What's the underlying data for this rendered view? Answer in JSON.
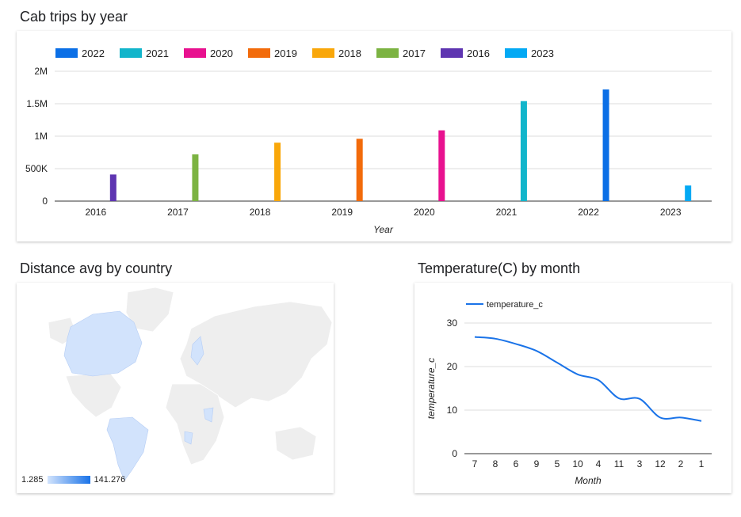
{
  "bar_section": {
    "title": "Cab trips by year"
  },
  "map_section": {
    "title": "Distance avg by country",
    "legend_min": "1.285",
    "legend_max": "141.276",
    "colors": {
      "low": "#d2e3fc",
      "high": "#1a73e8",
      "no_data": "#eeeeee"
    }
  },
  "line_section": {
    "title": "Temperature(C) by month"
  },
  "chart_data": [
    {
      "type": "bar",
      "title": "Cab trips by year",
      "xlabel": "Year",
      "ylabel": "",
      "ylim": [
        0,
        2000000
      ],
      "yticks": [
        {
          "value": 0,
          "label": "0"
        },
        {
          "value": 500000,
          "label": "500K"
        },
        {
          "value": 1000000,
          "label": "1M"
        },
        {
          "value": 1500000,
          "label": "1.5M"
        },
        {
          "value": 2000000,
          "label": "2M"
        }
      ],
      "categories": [
        "2016",
        "2017",
        "2018",
        "2019",
        "2020",
        "2021",
        "2022",
        "2023"
      ],
      "legend_position": "top-left",
      "series": [
        {
          "name": "2022",
          "color": "#0b6fe6",
          "values": [
            null,
            null,
            null,
            null,
            null,
            null,
            1720000,
            null
          ]
        },
        {
          "name": "2021",
          "color": "#12b5cb",
          "values": [
            null,
            null,
            null,
            null,
            null,
            1540000,
            null,
            null
          ]
        },
        {
          "name": "2020",
          "color": "#e8118f",
          "values": [
            null,
            null,
            null,
            null,
            1090000,
            null,
            null,
            null
          ]
        },
        {
          "name": "2019",
          "color": "#f26b0b",
          "values": [
            null,
            null,
            null,
            960000,
            null,
            null,
            null,
            null
          ]
        },
        {
          "name": "2018",
          "color": "#f9a70a",
          "values": [
            null,
            null,
            900000,
            null,
            null,
            null,
            null,
            null
          ]
        },
        {
          "name": "2017",
          "color": "#7cb342",
          "values": [
            null,
            720000,
            null,
            null,
            null,
            null,
            null,
            null
          ]
        },
        {
          "name": "2016",
          "color": "#5e35b1",
          "values": [
            410000,
            null,
            null,
            null,
            null,
            null,
            null,
            null
          ]
        },
        {
          "name": "2023",
          "color": "#03a9f4",
          "values": [
            null,
            null,
            null,
            null,
            null,
            null,
            null,
            240000
          ]
        }
      ]
    },
    {
      "type": "line",
      "title": "Temperature(C) by month",
      "xlabel": "Month",
      "ylabel": "temperature_c",
      "ylim": [
        0,
        30
      ],
      "yticks": [
        0,
        10,
        20,
        30
      ],
      "categories": [
        "7",
        "8",
        "6",
        "9",
        "5",
        "10",
        "4",
        "11",
        "3",
        "12",
        "2",
        "1"
      ],
      "legend_position": "top-left",
      "series": [
        {
          "name": "temperature_c",
          "color": "#1a73e8",
          "values": [
            26.8,
            26.4,
            25.2,
            23.6,
            20.9,
            18.2,
            16.9,
            12.7,
            12.6,
            8.3,
            8.3,
            7.5
          ]
        }
      ]
    }
  ]
}
